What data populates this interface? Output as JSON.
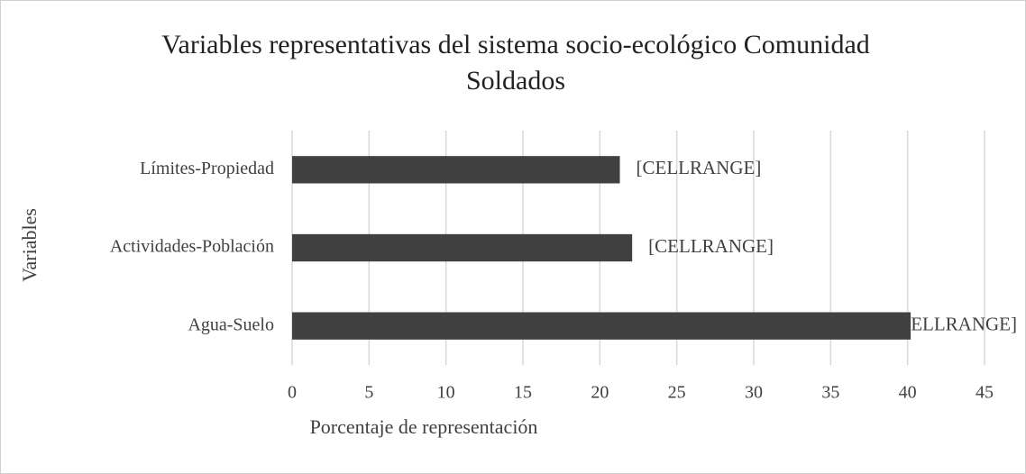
{
  "chart_data": {
    "type": "barh",
    "title": "Variables representativas del sistema socio-ecológico Comunidad Soldados",
    "xlabel": "Porcentaje de representación",
    "ylabel": "Variables",
    "categories": [
      "Agua-Suelo",
      "Actividades-Población",
      "Límites-Propiedad"
    ],
    "values": [
      40.2,
      22.1,
      21.3
    ],
    "value_labels": [
      "[CELLRANGE]",
      "[CELLRANGE]",
      "[CELLRANGE]"
    ],
    "color": "#404040",
    "xlim": [
      0,
      45
    ],
    "xticks": [
      0,
      5,
      10,
      15,
      20,
      25,
      30,
      35,
      40,
      45
    ],
    "grid": true
  }
}
